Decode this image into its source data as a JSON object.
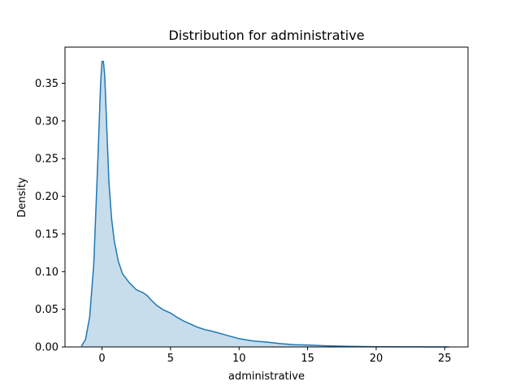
{
  "chart_data": {
    "type": "area",
    "title": "Distribution for administrative",
    "xlabel": "administrative",
    "ylabel": "Density",
    "xlim": [
      -2.7,
      26.7
    ],
    "ylim": [
      0,
      0.398
    ],
    "x_ticks": [
      0,
      5,
      10,
      15,
      20,
      25
    ],
    "y_ticks": [
      0.0,
      0.05,
      0.1,
      0.15,
      0.2,
      0.25,
      0.3,
      0.35
    ],
    "grid": false,
    "line_color": "#1f77b4",
    "fill_color": "#1f77b4",
    "fill_opacity": 0.25,
    "series": [
      {
        "x": [
          -1.5,
          -1.2,
          -0.9,
          -0.6,
          -0.3,
          -0.1,
          0.0,
          0.1,
          0.2,
          0.35,
          0.5,
          0.7,
          0.9,
          1.2,
          1.5,
          2.0,
          2.5,
          3.0,
          3.3,
          3.6,
          4.0,
          4.5,
          5.0,
          5.5,
          6.0,
          6.5,
          7.0,
          7.5,
          8.0,
          9.0,
          10.0,
          11.0,
          12.0,
          13.0,
          14.0,
          15.0,
          16.0,
          17.0,
          18.0,
          19.0,
          20.0,
          21.0,
          22.0,
          23.0,
          24.0,
          25.3
        ],
        "y": [
          0.001,
          0.01,
          0.04,
          0.11,
          0.25,
          0.35,
          0.379,
          0.379,
          0.36,
          0.29,
          0.22,
          0.17,
          0.14,
          0.113,
          0.097,
          0.085,
          0.076,
          0.072,
          0.068,
          0.062,
          0.055,
          0.049,
          0.045,
          0.039,
          0.034,
          0.03,
          0.026,
          0.023,
          0.021,
          0.016,
          0.011,
          0.008,
          0.0065,
          0.0045,
          0.003,
          0.0025,
          0.0018,
          0.0012,
          0.0008,
          0.0005,
          0.0003,
          0.0002,
          0.0001,
          0.0001,
          5e-05,
          0.0
        ]
      }
    ]
  }
}
